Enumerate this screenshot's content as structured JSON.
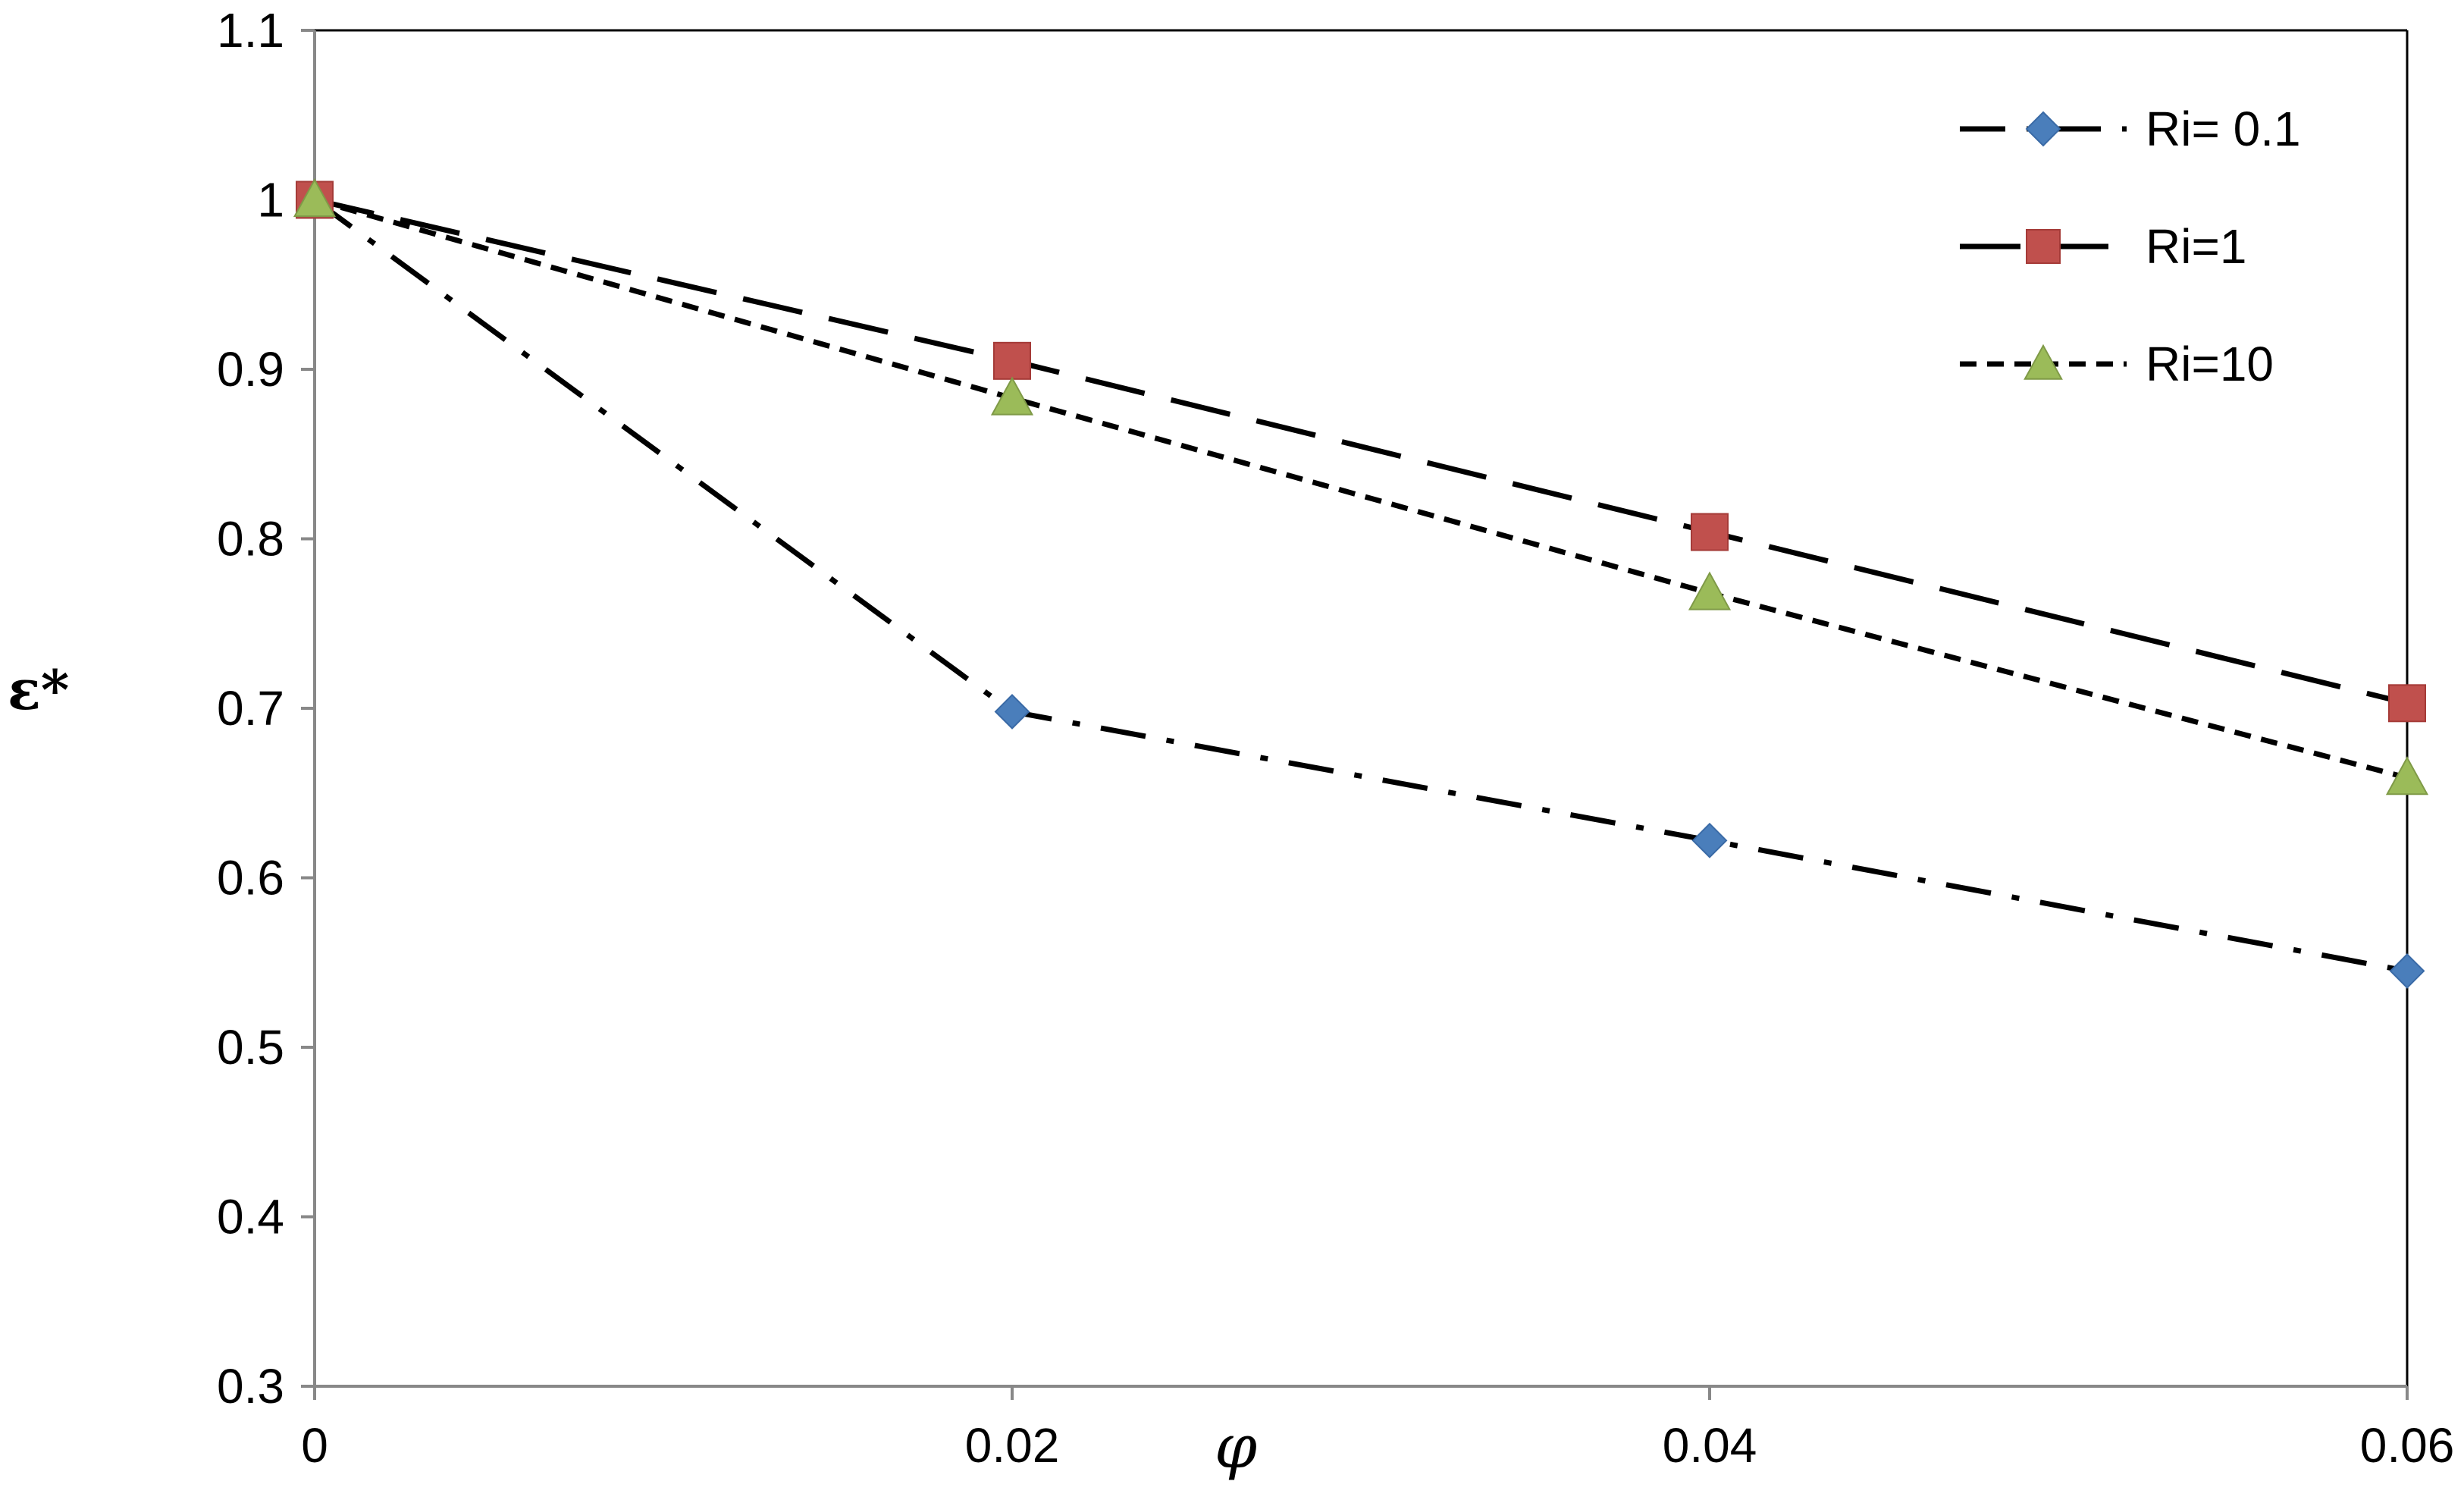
{
  "chart_data": {
    "type": "line",
    "title": "",
    "xlabel": "φ",
    "ylabel": "ε*",
    "xlim": [
      0,
      0.06
    ],
    "ylim": [
      0.3,
      1.1
    ],
    "x_ticks": [
      0,
      0.02,
      0.04,
      0.06
    ],
    "x_tick_labels": [
      "0",
      "0.02",
      "0.04",
      "0.06"
    ],
    "y_ticks": [
      0.3,
      0.4,
      0.5,
      0.6,
      0.7,
      0.8,
      0.9,
      1,
      1.1
    ],
    "y_tick_labels": [
      "0.3",
      "0.4",
      "0.5",
      "0.6",
      "0.7",
      "0.8",
      "0.9",
      "1",
      "1.1"
    ],
    "grid": false,
    "legend_position": "top-right",
    "x": [
      0,
      0.02,
      0.04,
      0.06
    ],
    "series": [
      {
        "name": "Ri= 0.1",
        "values": [
          1.0,
          0.698,
          0.622,
          0.545
        ],
        "marker": "diamond",
        "color": "#4a7ebb",
        "line_style": "dash-dot"
      },
      {
        "name": "Ri=1",
        "values": [
          1.0,
          0.905,
          0.804,
          0.703
        ],
        "marker": "square",
        "color": "#c0504d",
        "line_style": "long-dash"
      },
      {
        "name": "Ri=10",
        "values": [
          1.0,
          0.883,
          0.768,
          0.659
        ],
        "marker": "triangle",
        "color": "#9bbb59",
        "line_style": "short-dash"
      }
    ]
  }
}
